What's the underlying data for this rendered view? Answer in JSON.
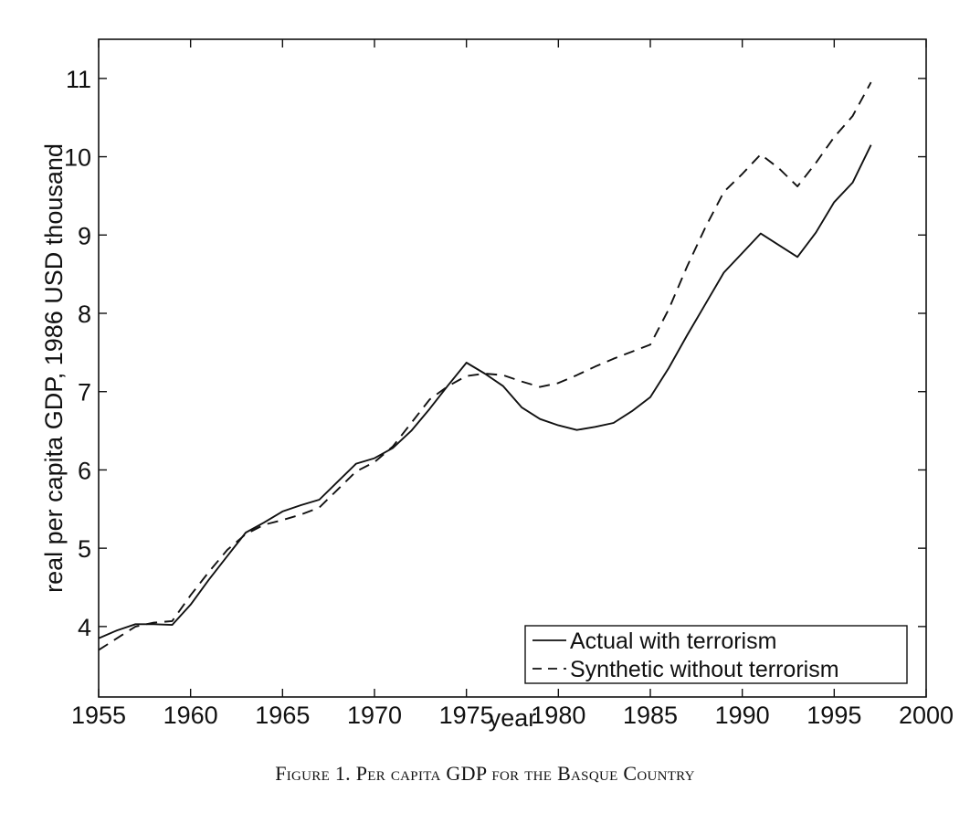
{
  "chart_data": {
    "type": "line",
    "title": "",
    "xlabel": "year",
    "ylabel": "real per capita GDP, 1986 USD thousand",
    "xlim": [
      1955,
      2000
    ],
    "ylim": [
      3.1,
      11.5
    ],
    "xticks": [
      1955,
      1960,
      1965,
      1970,
      1975,
      1980,
      1985,
      1990,
      1995,
      2000
    ],
    "yticks": [
      4,
      5,
      6,
      7,
      8,
      9,
      10,
      11
    ],
    "grid": false,
    "legend_position": "bottom-right",
    "series": [
      {
        "name": "Actual with terrorism",
        "style": "solid",
        "x": [
          1955,
          1956,
          1957,
          1958,
          1959,
          1960,
          1961,
          1962,
          1963,
          1964,
          1965,
          1966,
          1967,
          1968,
          1969,
          1970,
          1971,
          1972,
          1973,
          1974,
          1975,
          1976,
          1977,
          1978,
          1979,
          1980,
          1981,
          1982,
          1983,
          1984,
          1985,
          1986,
          1987,
          1988,
          1989,
          1990,
          1991,
          1992,
          1993,
          1994,
          1995,
          1996,
          1997
        ],
        "y": [
          3.85,
          3.95,
          4.03,
          4.03,
          4.02,
          4.28,
          4.6,
          4.9,
          5.2,
          5.33,
          5.47,
          5.55,
          5.62,
          5.85,
          6.08,
          6.15,
          6.28,
          6.5,
          6.78,
          7.08,
          7.37,
          7.23,
          7.07,
          6.8,
          6.65,
          6.57,
          6.51,
          6.55,
          6.6,
          6.75,
          6.93,
          7.3,
          7.72,
          8.12,
          8.52,
          8.77,
          9.02,
          8.87,
          8.72,
          9.03,
          9.42,
          9.67,
          10.15
        ]
      },
      {
        "name": "Synthetic without terrorism",
        "style": "dashed",
        "x": [
          1955,
          1956,
          1957,
          1958,
          1959,
          1960,
          1961,
          1962,
          1963,
          1964,
          1965,
          1966,
          1967,
          1968,
          1969,
          1970,
          1971,
          1972,
          1973,
          1974,
          1975,
          1976,
          1977,
          1978,
          1979,
          1980,
          1981,
          1982,
          1983,
          1984,
          1985,
          1986,
          1987,
          1988,
          1989,
          1990,
          1991,
          1992,
          1993,
          1994,
          1995,
          1996,
          1997
        ],
        "y": [
          3.7,
          3.85,
          4.0,
          4.05,
          4.07,
          4.4,
          4.7,
          4.98,
          5.18,
          5.3,
          5.36,
          5.43,
          5.52,
          5.75,
          5.98,
          6.1,
          6.3,
          6.6,
          6.9,
          7.07,
          7.2,
          7.23,
          7.21,
          7.13,
          7.06,
          7.11,
          7.21,
          7.32,
          7.42,
          7.51,
          7.6,
          8.05,
          8.6,
          9.1,
          9.55,
          9.78,
          10.03,
          9.85,
          9.62,
          9.92,
          10.25,
          10.52,
          10.95
        ]
      }
    ]
  },
  "caption": "Figure 1. Per capita GDP for the Basque Country"
}
